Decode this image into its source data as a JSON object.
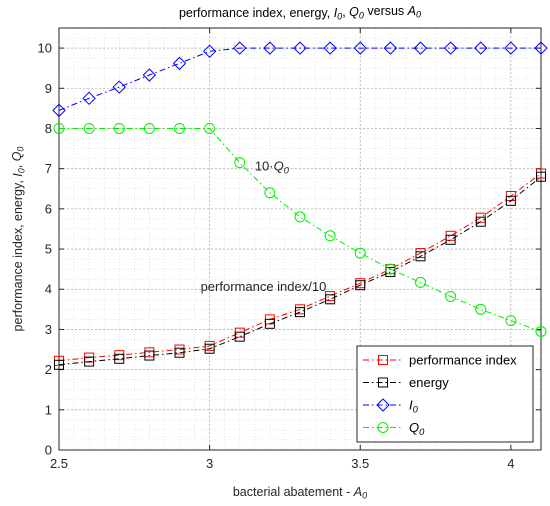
{
  "chart_data": {
    "type": "line",
    "title_parts": [
      "performance index, energy, ",
      "I",
      "0",
      ", ",
      "Q",
      "0",
      " versus ",
      "A",
      "0"
    ],
    "xlabel_parts": [
      "bacterial abatement - ",
      "A",
      "0"
    ],
    "ylabel_parts": [
      "performance index, energy, ",
      "I",
      "0",
      ", ",
      "Q",
      "0"
    ],
    "xlim": [
      2.5,
      4.1
    ],
    "ylim": [
      0,
      10.5
    ],
    "xticks": [
      2.5,
      3,
      3.5,
      4
    ],
    "xtick_labels": [
      "2.5",
      "3",
      "3.5",
      "4"
    ],
    "yticks": [
      0,
      1,
      2,
      3,
      4,
      5,
      6,
      7,
      8,
      9,
      10
    ],
    "ytick_labels": [
      "0",
      "1",
      "2",
      "3",
      "4",
      "5",
      "6",
      "7",
      "8",
      "9",
      "10"
    ],
    "grid": true,
    "minor_grid": true,
    "legend_position": "bottom-right",
    "x": [
      2.5,
      2.6,
      2.7,
      2.8,
      2.9,
      3.0,
      3.1,
      3.2,
      3.3,
      3.4,
      3.5,
      3.6,
      3.7,
      3.8,
      3.9,
      4.0,
      4.1
    ],
    "series": [
      {
        "name": "performance index",
        "color": "#ff0000",
        "marker": "square",
        "values": [
          2.22,
          2.3,
          2.36,
          2.43,
          2.5,
          2.59,
          2.92,
          3.25,
          3.5,
          3.83,
          4.15,
          4.5,
          4.9,
          5.33,
          5.78,
          6.32,
          6.88
        ]
      },
      {
        "name": "energy",
        "color": "#000000",
        "marker": "square",
        "values": [
          2.12,
          2.2,
          2.27,
          2.35,
          2.42,
          2.52,
          2.82,
          3.14,
          3.43,
          3.75,
          4.1,
          4.43,
          4.82,
          5.23,
          5.68,
          6.2,
          6.8
        ]
      },
      {
        "name_parts": [
          "I",
          "0"
        ],
        "color": "#0000ff",
        "marker": "diamond",
        "values": [
          8.45,
          8.75,
          9.03,
          9.33,
          9.62,
          9.92,
          10,
          10,
          10,
          10,
          10,
          10,
          10,
          10,
          10,
          10,
          10
        ]
      },
      {
        "name_parts": [
          "Q",
          "0"
        ],
        "color": "#00ee00",
        "marker": "circle",
        "values": [
          8,
          8,
          8,
          8,
          8,
          8,
          7.15,
          6.4,
          5.8,
          5.33,
          4.9,
          4.5,
          4.17,
          3.82,
          3.5,
          3.22,
          2.95
        ]
      }
    ],
    "annotations": [
      {
        "text_parts": [
          "10·",
          "Q",
          "0"
        ],
        "x": 3.15,
        "y": 6.95
      },
      {
        "text": "performance index/10",
        "x": 2.97,
        "y": 3.95
      }
    ]
  }
}
